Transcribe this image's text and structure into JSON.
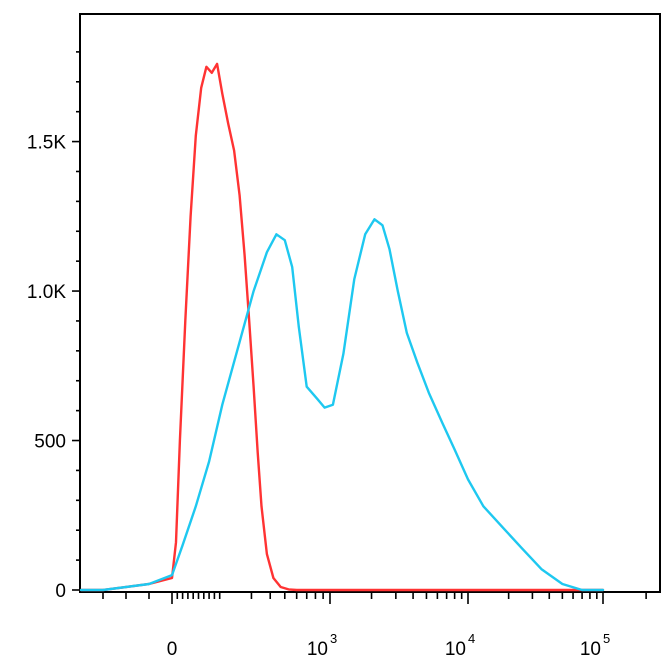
{
  "chart_data": {
    "type": "line",
    "title": "",
    "xlabel": "",
    "ylabel": "",
    "x_scale": "biexponential",
    "y_scale": "linear",
    "xlim": [
      -80,
      100000
    ],
    "ylim": [
      0,
      1900
    ],
    "grid": false,
    "legend": "none",
    "y_ticks": [
      {
        "value": 0,
        "label": "0"
      },
      {
        "value": 500,
        "label": "500"
      },
      {
        "value": 1000,
        "label": "1.0K"
      },
      {
        "value": 1500,
        "label": "1.5K"
      }
    ],
    "x_ticks": [
      {
        "value": 0,
        "base": "0",
        "exp": ""
      },
      {
        "value": 1000,
        "base": "10",
        "exp": "3"
      },
      {
        "value": 10000,
        "base": "10",
        "exp": "4"
      },
      {
        "value": 100000,
        "base": "10",
        "exp": "5"
      }
    ],
    "series": [
      {
        "color": "#ff3333",
        "x": [
          -60,
          -20,
          0,
          15,
          30,
          50,
          70,
          90,
          110,
          130,
          150,
          170,
          190,
          210,
          230,
          250,
          270,
          290,
          310,
          330,
          350,
          380,
          420,
          470,
          530,
          600,
          700,
          1000,
          10000,
          100000
        ],
        "y": [
          0,
          20,
          40,
          160,
          500,
          900,
          1250,
          1520,
          1680,
          1750,
          1730,
          1760,
          1660,
          1560,
          1470,
          1320,
          1120,
          900,
          680,
          460,
          280,
          120,
          40,
          10,
          2,
          0,
          0,
          0,
          0,
          0
        ]
      },
      {
        "color": "#1ec8f0",
        "x": [
          -60,
          -20,
          0,
          40,
          90,
          140,
          190,
          250,
          310,
          380,
          440,
          500,
          560,
          620,
          700,
          820,
          920,
          1050,
          1250,
          1500,
          1800,
          2100,
          2400,
          2700,
          3100,
          3600,
          4300,
          5200,
          6500,
          8000,
          10000,
          13000,
          18000,
          25000,
          35000,
          50000,
          70000,
          100000
        ],
        "y": [
          0,
          20,
          50,
          150,
          280,
          430,
          620,
          830,
          1000,
          1130,
          1190,
          1170,
          1080,
          880,
          680,
          640,
          610,
          620,
          790,
          1040,
          1190,
          1240,
          1220,
          1140,
          1000,
          860,
          760,
          660,
          560,
          470,
          370,
          280,
          210,
          140,
          70,
          20,
          0,
          0
        ]
      }
    ]
  }
}
